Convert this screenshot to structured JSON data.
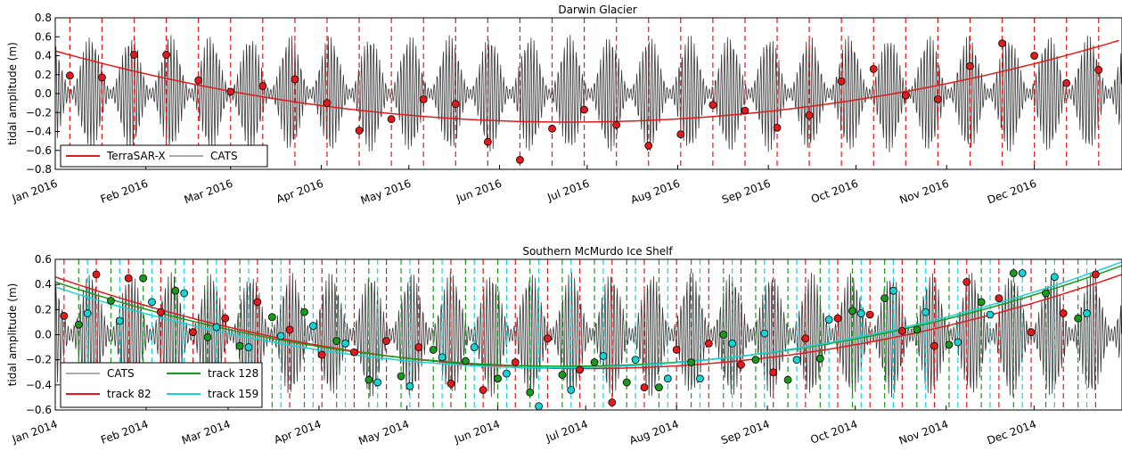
{
  "chart_data": [
    {
      "type": "line",
      "title": "Darwin Glacier",
      "ylabel": "tidal amplitude (m)",
      "xlabel": "",
      "xlim": [
        "2016-01-01",
        "2016-12-31"
      ],
      "ylim": [
        -0.8,
        0.8
      ],
      "yticks": [
        -0.8,
        -0.6,
        -0.4,
        -0.2,
        0.0,
        0.2,
        0.4,
        0.6,
        0.8
      ],
      "ytick_labels": [
        "−0.8",
        "−0.6",
        "−0.4",
        "−0.2",
        "0.0",
        "0.2",
        "0.4",
        "0.6",
        "0.8"
      ],
      "xticks": [
        "2016-01-01",
        "2016-02-01",
        "2016-03-01",
        "2016-04-01",
        "2016-05-01",
        "2016-06-01",
        "2016-07-01",
        "2016-08-01",
        "2016-09-01",
        "2016-10-01",
        "2016-11-01",
        "2016-12-01"
      ],
      "xtick_labels": [
        "Jan 2016",
        "Feb 2016",
        "Mar 2016",
        "Apr 2016",
        "May 2016",
        "Jun 2016",
        "Jul 2016",
        "Aug 2016",
        "Sep 2016",
        "Oct 2016",
        "Nov 2016",
        "Dec 2016"
      ],
      "legend": {
        "placement": "lower-left",
        "ncol": 2,
        "entries": [
          {
            "label": "TerraSAR-X",
            "color": "#e31a1c"
          },
          {
            "label": "CATS",
            "color": "#555555"
          }
        ]
      },
      "cats": {
        "amplitude_min": 0.05,
        "amplitude_max": 0.62,
        "color": "#3a3a3a"
      },
      "series": [
        {
          "name": "TerraSAR-X",
          "color": "#e31a1c",
          "dates": [
            "2016-01-06",
            "2016-01-17",
            "2016-01-28",
            "2016-02-08",
            "2016-02-19",
            "2016-03-01",
            "2016-03-12",
            "2016-03-23",
            "2016-04-03",
            "2016-04-14",
            "2016-04-25",
            "2016-05-06",
            "2016-05-17",
            "2016-05-28",
            "2016-06-08",
            "2016-06-19",
            "2016-06-30",
            "2016-07-11",
            "2016-07-22",
            "2016-08-02",
            "2016-08-13",
            "2016-08-24",
            "2016-09-04",
            "2016-09-15",
            "2016-09-26",
            "2016-10-07",
            "2016-10-18",
            "2016-10-29",
            "2016-11-09",
            "2016-11-20",
            "2016-12-01",
            "2016-12-12",
            "2016-12-23"
          ],
          "values": [
            0.19,
            0.17,
            0.41,
            0.41,
            0.14,
            0.02,
            0.08,
            0.15,
            -0.1,
            -0.39,
            -0.27,
            -0.06,
            -0.11,
            -0.51,
            -0.7,
            -0.37,
            -0.17,
            -0.33,
            -0.55,
            -0.43,
            -0.12,
            -0.18,
            -0.36,
            -0.23,
            0.13,
            0.26,
            -0.02,
            -0.06,
            0.29,
            0.53,
            0.4,
            0.11,
            0.25
          ],
          "fit": [
            0.45,
            0.0,
            -0.3,
            0.57
          ]
        }
      ]
    },
    {
      "type": "line",
      "title": "Southern McMurdo Ice Shelf",
      "ylabel": "tidal amplitude (m)",
      "xlabel": "",
      "xlim": [
        "2014-01-01",
        "2014-12-31"
      ],
      "ylim": [
        -0.6,
        0.6
      ],
      "yticks": [
        -0.6,
        -0.4,
        -0.2,
        0.0,
        0.2,
        0.4,
        0.6
      ],
      "ytick_labels": [
        "−0.6",
        "−0.4",
        "−0.2",
        "0.0",
        "0.2",
        "0.4",
        "0.6"
      ],
      "xticks": [
        "2014-01-01",
        "2014-02-01",
        "2014-03-01",
        "2014-04-01",
        "2014-05-01",
        "2014-06-01",
        "2014-07-01",
        "2014-08-01",
        "2014-09-01",
        "2014-10-01",
        "2014-11-01",
        "2014-12-01"
      ],
      "xtick_labels": [
        "Jan 2014",
        "Feb 2014",
        "Mar 2014",
        "Apr 2014",
        "May 2014",
        "Jun 2014",
        "Jul 2014",
        "Aug 2014",
        "Sep 2014",
        "Oct 2014",
        "Nov 2014",
        "Dec 2014"
      ],
      "legend": {
        "placement": "lower-left",
        "ncol": 2,
        "entries": [
          {
            "label": "CATS",
            "color": "#555555"
          },
          {
            "label": "track 82",
            "color": "#e31a1c"
          },
          {
            "label": "track 128",
            "color": "#1a9a1a"
          },
          {
            "label": "track 159",
            "color": "#17d4d4"
          }
        ]
      },
      "cats": {
        "amplitude_min": 0.05,
        "amplitude_max": 0.5,
        "color": "#3a3a3a"
      },
      "series": [
        {
          "name": "track 82",
          "color": "#e31a1c",
          "dates": [
            "2014-01-04",
            "2014-01-15",
            "2014-01-26",
            "2014-02-06",
            "2014-02-17",
            "2014-02-28",
            "2014-03-11",
            "2014-03-22",
            "2014-04-02",
            "2014-04-13",
            "2014-04-24",
            "2014-05-05",
            "2014-05-16",
            "2014-05-27",
            "2014-06-07",
            "2014-06-18",
            "2014-06-29",
            "2014-07-10",
            "2014-07-21",
            "2014-08-01",
            "2014-08-12",
            "2014-08-23",
            "2014-09-03",
            "2014-09-14",
            "2014-09-25",
            "2014-10-06",
            "2014-10-17",
            "2014-10-28",
            "2014-11-08",
            "2014-11-19",
            "2014-11-30",
            "2014-12-11",
            "2014-12-22"
          ],
          "values": [
            0.15,
            0.48,
            0.45,
            0.18,
            0.02,
            0.13,
            0.26,
            0.04,
            -0.16,
            -0.14,
            -0.05,
            -0.1,
            -0.39,
            -0.44,
            -0.22,
            -0.03,
            -0.28,
            -0.54,
            -0.42,
            -0.12,
            -0.07,
            -0.24,
            -0.3,
            -0.03,
            0.13,
            0.16,
            0.03,
            -0.09,
            0.42,
            0.29,
            0.02,
            0.17,
            0.48
          ],
          "fit": [
            0.46,
            0.0,
            -0.27,
            0.48
          ]
        },
        {
          "name": "track 128",
          "color": "#1a9a1a",
          "dates": [
            "2014-01-09",
            "2014-01-20",
            "2014-01-31",
            "2014-02-11",
            "2014-02-22",
            "2014-03-05",
            "2014-03-16",
            "2014-03-27",
            "2014-04-07",
            "2014-04-18",
            "2014-04-29",
            "2014-05-10",
            "2014-05-21",
            "2014-06-01",
            "2014-06-12",
            "2014-06-23",
            "2014-07-04",
            "2014-07-15",
            "2014-07-26",
            "2014-08-06",
            "2014-08-17",
            "2014-08-28",
            "2014-09-08",
            "2014-09-19",
            "2014-09-30",
            "2014-10-11",
            "2014-10-22",
            "2014-11-02",
            "2014-11-13",
            "2014-11-24",
            "2014-12-05",
            "2014-12-16"
          ],
          "values": [
            0.08,
            0.27,
            0.45,
            0.35,
            -0.02,
            -0.09,
            0.14,
            0.18,
            -0.05,
            -0.36,
            -0.33,
            -0.12,
            -0.21,
            -0.35,
            -0.46,
            -0.32,
            -0.22,
            -0.38,
            -0.42,
            -0.22,
            0.0,
            -0.2,
            -0.36,
            -0.19,
            0.19,
            0.29,
            0.04,
            -0.08,
            0.26,
            0.49,
            0.33,
            0.13
          ],
          "fit": [
            0.42,
            0.0,
            -0.25,
            0.55
          ]
        },
        {
          "name": "track 159",
          "color": "#17d4d4",
          "dates": [
            "2014-01-12",
            "2014-01-23",
            "2014-02-03",
            "2014-02-14",
            "2014-02-25",
            "2014-03-08",
            "2014-03-19",
            "2014-03-30",
            "2014-04-10",
            "2014-04-21",
            "2014-05-02",
            "2014-05-13",
            "2014-05-24",
            "2014-06-04",
            "2014-06-15",
            "2014-06-26",
            "2014-07-07",
            "2014-07-18",
            "2014-07-29",
            "2014-08-09",
            "2014-08-20",
            "2014-08-31",
            "2014-09-11",
            "2014-09-22",
            "2014-10-03",
            "2014-10-14",
            "2014-10-25",
            "2014-11-05",
            "2014-11-16",
            "2014-11-27",
            "2014-12-08",
            "2014-12-19"
          ],
          "values": [
            0.17,
            0.11,
            0.26,
            0.33,
            0.06,
            -0.1,
            -0.01,
            0.07,
            -0.07,
            -0.38,
            -0.41,
            -0.18,
            -0.1,
            -0.31,
            -0.57,
            -0.44,
            -0.17,
            -0.2,
            -0.35,
            -0.35,
            -0.07,
            0.01,
            -0.2,
            0.12,
            0.17,
            0.35,
            0.18,
            -0.06,
            0.16,
            0.49,
            0.46,
            0.17
          ],
          "fit": [
            0.38,
            0.0,
            -0.26,
            0.58
          ]
        }
      ]
    }
  ]
}
